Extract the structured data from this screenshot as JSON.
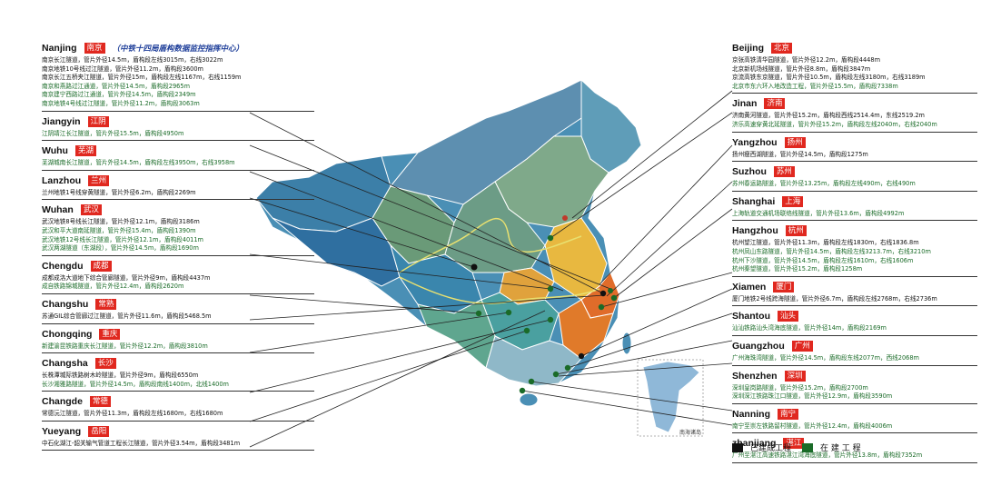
{
  "colors": {
    "done": "#111111",
    "building": "#1a6b28",
    "tag_bg": "#e0281f",
    "subtitle": "#1f3f9a"
  },
  "left_cities": [
    {
      "en": "Nanjing",
      "cn": "南京",
      "subtitle": "（中铁十四局盾构数据监控指挥中心）",
      "projects": [
        {
          "text": "南京长江隧道，管片外径14.5m，盾构段左线3015m，右线3022m",
          "status": "done"
        },
        {
          "text": "南京地铁10号线过江隧道，管片外径11.2m，盾构段3600m",
          "status": "done"
        },
        {
          "text": "南京长江五桥夹江隧道，管片外径15m，盾构段左线1167m，右线1159m",
          "status": "done"
        },
        {
          "text": "南京和燕路过江通道，管片外径14.5m，盾构段2965m",
          "status": "building"
        },
        {
          "text": "南京建宁西路过江通道，管片外径14.5m，盾构段2349m",
          "status": "building"
        },
        {
          "text": "南京地铁4号线过江隧道，管片外径11.2m，盾构段3063m",
          "status": "building"
        }
      ]
    },
    {
      "en": "Jiangyin",
      "cn": "江阴",
      "subtitle": "",
      "projects": [
        {
          "text": "江阴靖江长江隧道，管片外径15.5m，盾构段4950m",
          "status": "building"
        }
      ]
    },
    {
      "en": "Wuhu",
      "cn": "芜湖",
      "subtitle": "",
      "projects": [
        {
          "text": "芜湖城南长江隧道，管片外径14.5m，盾构段左线3950m，右线3958m",
          "status": "building"
        }
      ]
    },
    {
      "en": "Lanzhou",
      "cn": "兰州",
      "subtitle": "",
      "projects": [
        {
          "text": "兰州地铁1号线穿黄隧道，管片外径6.2m，盾构段2269m",
          "status": "done"
        }
      ]
    },
    {
      "en": "Wuhan",
      "cn": "武汉",
      "subtitle": "",
      "projects": [
        {
          "text": "武汉地铁8号线长江隧道，管片外径12.1m，盾构段3186m",
          "status": "done"
        },
        {
          "text": "武汉和平大道南延隧道，管片外径15.4m，盾构段1390m",
          "status": "building"
        },
        {
          "text": "武汉地铁12号线长江隧道，管片外径12.1m，盾构段4011m",
          "status": "building"
        },
        {
          "text": "武汉两湖隧道（东湖段），管片外径14.5m，盾构段1690m",
          "status": "building"
        }
      ]
    },
    {
      "en": "Chengdu",
      "cn": "成都",
      "subtitle": "",
      "projects": [
        {
          "text": "成都成洛大道地下综合管廊隧道，管片外径9m，盾构段4437m",
          "status": "done"
        },
        {
          "text": "成自铁路锦城隧道，管片外径12.4m，盾构段2620m",
          "status": "building"
        }
      ]
    },
    {
      "en": "Changshu",
      "cn": "常熟",
      "subtitle": "",
      "projects": [
        {
          "text": "苏通GIL综合管廊过江隧道，管片外径11.6m，盾构段5468.5m",
          "status": "done"
        }
      ]
    },
    {
      "en": "Chongqing",
      "cn": "重庆",
      "subtitle": "",
      "projects": [
        {
          "text": "新建渝昆铁路重庆长江隧道，管片外径12.2m，盾构段3810m",
          "status": "building"
        }
      ]
    },
    {
      "en": "Changsha",
      "cn": "长沙",
      "subtitle": "",
      "projects": [
        {
          "text": "长株潭城际铁路树木岭隧道，管片外径9m，盾构段6550m",
          "status": "done"
        },
        {
          "text": "长沙湘雅路隧道，管片外径14.5m，盾构段南线1400m，北线1400m",
          "status": "building"
        }
      ]
    },
    {
      "en": "Changde",
      "cn": "常德",
      "subtitle": "",
      "projects": [
        {
          "text": "常德沅江隧道，管片外径11.3m，盾构段左线1680m，右线1680m",
          "status": "done"
        }
      ]
    },
    {
      "en": "Yueyang",
      "cn": "岳阳",
      "subtitle": "",
      "projects": [
        {
          "text": "中石化湖江-韶关输气管道工程长江隧道，管片外径3.54m，盾构段3481m",
          "status": "done"
        }
      ]
    }
  ],
  "right_cities": [
    {
      "en": "Beijing",
      "cn": "北京",
      "projects": [
        {
          "text": "京张高铁清华园隧道，管片外径12.2m，盾构段4448m",
          "status": "done"
        },
        {
          "text": "北京新机场线隧道，管片外径8.8m，盾构段3847m",
          "status": "done"
        },
        {
          "text": "京流高铁东京隧道，管片外径10.5m，盾构段左线3180m，右线3189m",
          "status": "done"
        },
        {
          "text": "北京市东六环入地改造工程，管片外径15.5m，盾构段7338m",
          "status": "building"
        }
      ]
    },
    {
      "en": "Jinan",
      "cn": "济南",
      "projects": [
        {
          "text": "济南黄河隧道，管片外径15.2m，盾构段西线2514.4m，东线2519.2m",
          "status": "done"
        },
        {
          "text": "济乐高速穿黄北延隧道，管片外径15.2m，盾构段左线2040m，右线2040m",
          "status": "building"
        }
      ]
    },
    {
      "en": "Yangzhou",
      "cn": "扬州",
      "projects": [
        {
          "text": "扬州瘦西湖隧道，管片外径14.5m，盾构段1275m",
          "status": "done"
        }
      ]
    },
    {
      "en": "Suzhou",
      "cn": "苏州",
      "projects": [
        {
          "text": "苏州春运路隧道，管片外径13.25m，盾构段左线490m，右线490m",
          "status": "building"
        }
      ]
    },
    {
      "en": "Shanghai",
      "cn": "上海",
      "projects": [
        {
          "text": "上海轨道交通机场联络线隧道，管片外径13.6m，盾构段4992m",
          "status": "building"
        }
      ]
    },
    {
      "en": "Hangzhou",
      "cn": "杭州",
      "projects": [
        {
          "text": "杭州望江隧道，管片外径11.3m，盾构段左线1830m，右线1836.8m",
          "status": "done"
        },
        {
          "text": "杭州凤山东路隧道，管片外径14.5m，盾构段左线3213.7m，右线3210m",
          "status": "building"
        },
        {
          "text": "杭州下沙隧道，管片外径14.5m，盾构段左线1610m，右线1606m",
          "status": "building"
        },
        {
          "text": "杭州秦望隧道，管片外径15.2m，盾构段1258m",
          "status": "building"
        }
      ]
    },
    {
      "en": "Xiamen",
      "cn": "厦门",
      "projects": [
        {
          "text": "厦门地铁2号线跨海隧道，管片外径6.7m，盾构段左线2768m，右线2736m",
          "status": "done"
        }
      ]
    },
    {
      "en": "Shantou",
      "cn": "汕头",
      "projects": [
        {
          "text": "汕汕铁路汕头湾海底隧道，管片外径14m，盾构段2169m",
          "status": "building"
        }
      ]
    },
    {
      "en": "Guangzhou",
      "cn": "广州",
      "projects": [
        {
          "text": "广州海珠湾隧道，管片外径14.5m，盾构段东线2077m，西线2068m",
          "status": "building"
        }
      ]
    },
    {
      "en": "Shenzhen",
      "cn": "深圳",
      "projects": [
        {
          "text": "深圳皇岗路隧道，管片外径15.2m，盾构段2700m",
          "status": "building"
        },
        {
          "text": "深圳深江铁路珠江口隧道，管片外径12.9m，盾构段3590m",
          "status": "building"
        }
      ]
    },
    {
      "en": "Nanning",
      "cn": "南宁",
      "projects": [
        {
          "text": "南宁至崇左铁路留村隧道，管片外径12.4m，盾构段4006m",
          "status": "building"
        }
      ]
    },
    {
      "en": "zhanjiang",
      "cn": "湛江",
      "projects": [
        {
          "text": "广州至湛江高速铁路湛江湾海底隧道，管片外径13.8m，盾构段7352m",
          "status": "building"
        }
      ]
    }
  ],
  "inset_label": "南海诸岛",
  "legend": [
    {
      "label": "已建成工程",
      "color": "#111111"
    },
    {
      "label": "在 建 工 程",
      "color": "#1a6b28"
    }
  ]
}
